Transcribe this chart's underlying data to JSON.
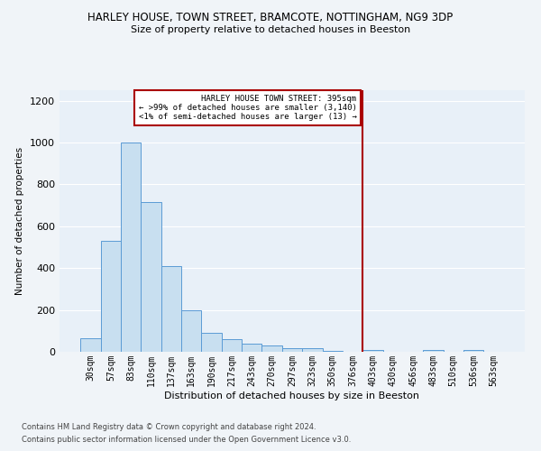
{
  "title": "HARLEY HOUSE, TOWN STREET, BRAMCOTE, NOTTINGHAM, NG9 3DP",
  "subtitle": "Size of property relative to detached houses in Beeston",
  "xlabel": "Distribution of detached houses by size in Beeston",
  "ylabel": "Number of detached properties",
  "footer1": "Contains HM Land Registry data © Crown copyright and database right 2024.",
  "footer2": "Contains public sector information licensed under the Open Government Licence v3.0.",
  "bar_labels": [
    "30sqm",
    "57sqm",
    "83sqm",
    "110sqm",
    "137sqm",
    "163sqm",
    "190sqm",
    "217sqm",
    "243sqm",
    "270sqm",
    "297sqm",
    "323sqm",
    "350sqm",
    "376sqm",
    "403sqm",
    "430sqm",
    "456sqm",
    "483sqm",
    "510sqm",
    "536sqm",
    "563sqm"
  ],
  "bar_values": [
    65,
    530,
    1000,
    715,
    408,
    198,
    90,
    60,
    40,
    32,
    18,
    18,
    5,
    0,
    10,
    0,
    0,
    10,
    0,
    10,
    0
  ],
  "bar_color": "#c8dff0",
  "bar_edge_color": "#5b9bd5",
  "plot_bg_color": "#e8f0f8",
  "grid_color": "#ffffff",
  "background_color": "#f0f4f8",
  "annotation_line_color": "#aa0000",
  "annotation_box_text": [
    "HARLEY HOUSE TOWN STREET: 395sqm",
    "← >99% of detached houses are smaller (3,140)",
    "<1% of semi-detached houses are larger (13) →"
  ],
  "annotation_box_color": "#ffffff",
  "annotation_box_edge_color": "#aa0000",
  "ylim": [
    0,
    1250
  ],
  "yticks": [
    0,
    200,
    400,
    600,
    800,
    1000,
    1200
  ]
}
